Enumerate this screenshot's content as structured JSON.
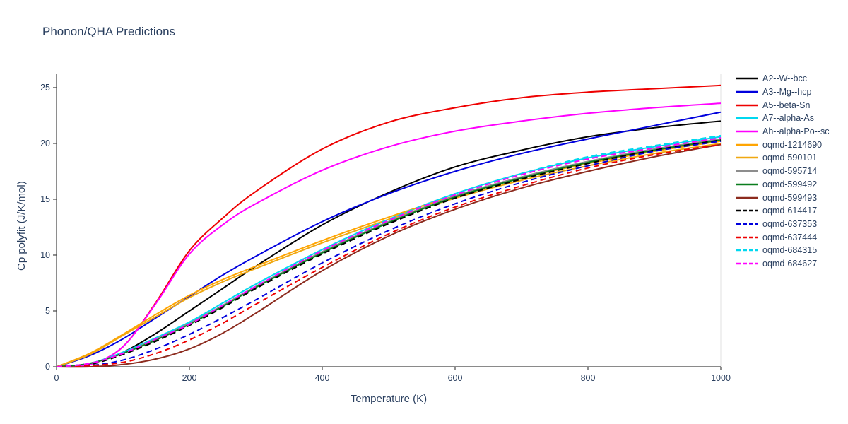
{
  "page": {
    "title": "Phonon/QHA Predictions"
  },
  "style": {
    "text_color": "#2a3f5f",
    "axis_color": "#444444",
    "right_border_color": "#e2e2e2",
    "background": "#ffffff",
    "line_width": 2
  },
  "chart_data": {
    "type": "line",
    "title": "Phonon/QHA Predictions",
    "xlabel": "Temperature (K)",
    "ylabel": "Cp polyfit (J/K/mol)",
    "xlim": [
      0,
      1000
    ],
    "ylim": [
      0,
      26.2
    ],
    "xticks": [
      0,
      200,
      400,
      600,
      800,
      1000
    ],
    "yticks": [
      0,
      5,
      10,
      15,
      20,
      25
    ],
    "grid": false,
    "legend_position": "right",
    "x": [
      0,
      50,
      100,
      150,
      200,
      250,
      300,
      400,
      500,
      600,
      700,
      800,
      900,
      1000
    ],
    "series": [
      {
        "name": "A2--W--bcc",
        "color": "#000000",
        "dash": "solid",
        "values": [
          0,
          0.3,
          1.3,
          3.0,
          5.0,
          7.0,
          9.0,
          12.7,
          15.6,
          17.9,
          19.4,
          20.6,
          21.4,
          22.0
        ]
      },
      {
        "name": "A3--Mg--hcp",
        "color": "#0000dd",
        "dash": "solid",
        "values": [
          0,
          1.0,
          2.5,
          4.4,
          6.3,
          8.2,
          9.9,
          13.0,
          15.5,
          17.5,
          19.1,
          20.4,
          21.6,
          22.8
        ]
      },
      {
        "name": "A5--beta-Sn",
        "color": "#ee0000",
        "dash": "solid",
        "values": [
          0,
          0.2,
          1.8,
          5.8,
          10.4,
          13.3,
          15.7,
          19.5,
          21.9,
          23.2,
          24.1,
          24.6,
          24.9,
          25.2
        ]
      },
      {
        "name": "A7--alpha-As",
        "color": "#00d8f0",
        "dash": "solid",
        "values": [
          0,
          0.3,
          1.3,
          2.6,
          4.0,
          5.7,
          7.4,
          10.5,
          13.2,
          15.5,
          17.3,
          18.7,
          19.7,
          20.6
        ]
      },
      {
        "name": "Ah--alpha-Po--sc",
        "color": "#ff00ff",
        "dash": "solid",
        "values": [
          0,
          0.2,
          1.8,
          5.7,
          10.1,
          12.7,
          14.6,
          17.6,
          19.7,
          21.1,
          22.0,
          22.7,
          23.2,
          23.6
        ]
      },
      {
        "name": "oqmd-1214690",
        "color": "#ffa502",
        "dash": "solid",
        "values": [
          0,
          1.2,
          2.9,
          4.7,
          6.4,
          7.8,
          9.0,
          11.3,
          13.4,
          15.3,
          16.9,
          18.2,
          19.3,
          20.2
        ]
      },
      {
        "name": "oqmd-590101",
        "color": "#f0a811",
        "dash": "solid",
        "values": [
          0,
          1.1,
          2.8,
          4.5,
          6.2,
          7.6,
          8.8,
          11.1,
          13.2,
          15.1,
          16.7,
          18.0,
          19.1,
          20.0
        ]
      },
      {
        "name": "oqmd-595714",
        "color": "#8d8d8d",
        "dash": "solid",
        "values": [
          0,
          0.3,
          1.2,
          2.5,
          3.9,
          5.5,
          7.2,
          10.3,
          13.0,
          15.3,
          17.0,
          18.4,
          19.5,
          20.4
        ]
      },
      {
        "name": "oqmd-599492",
        "color": "#0a7d1e",
        "dash": "solid",
        "values": [
          0,
          0.3,
          1.2,
          2.4,
          3.8,
          5.4,
          7.1,
          10.2,
          12.9,
          15.2,
          16.9,
          18.3,
          19.4,
          20.3
        ]
      },
      {
        "name": "oqmd-599493",
        "color": "#8c2b1e",
        "dash": "solid",
        "values": [
          0,
          0.0,
          0.2,
          0.7,
          1.6,
          3.0,
          4.8,
          8.6,
          11.7,
          14.1,
          16.0,
          17.5,
          18.8,
          19.9
        ]
      },
      {
        "name": "oqmd-614417",
        "color": "#000000",
        "dash": "dash",
        "values": [
          0,
          0.2,
          1.1,
          2.3,
          3.7,
          5.3,
          7.0,
          10.1,
          12.8,
          15.1,
          16.8,
          18.2,
          19.4,
          20.3
        ]
      },
      {
        "name": "oqmd-637353",
        "color": "#0000dd",
        "dash": "dash",
        "values": [
          0,
          0.1,
          0.6,
          1.6,
          2.9,
          4.4,
          6.0,
          9.3,
          12.2,
          14.6,
          16.5,
          18.0,
          19.3,
          20.2
        ]
      },
      {
        "name": "oqmd-637444",
        "color": "#ee0000",
        "dash": "dash",
        "values": [
          0,
          0.1,
          0.4,
          1.2,
          2.4,
          3.9,
          5.6,
          8.9,
          11.9,
          14.3,
          16.2,
          17.8,
          19.0,
          19.9
        ]
      },
      {
        "name": "oqmd-684315",
        "color": "#00d8f0",
        "dash": "dash",
        "values": [
          0,
          0.3,
          1.3,
          2.6,
          4.0,
          5.7,
          7.4,
          10.5,
          13.2,
          15.5,
          17.3,
          18.8,
          19.8,
          20.7
        ]
      },
      {
        "name": "oqmd-684627",
        "color": "#ff00ff",
        "dash": "dash",
        "values": [
          0,
          0.3,
          1.2,
          2.5,
          3.8,
          5.5,
          7.2,
          10.4,
          13.1,
          15.4,
          17.2,
          18.6,
          19.6,
          20.5
        ]
      }
    ]
  }
}
